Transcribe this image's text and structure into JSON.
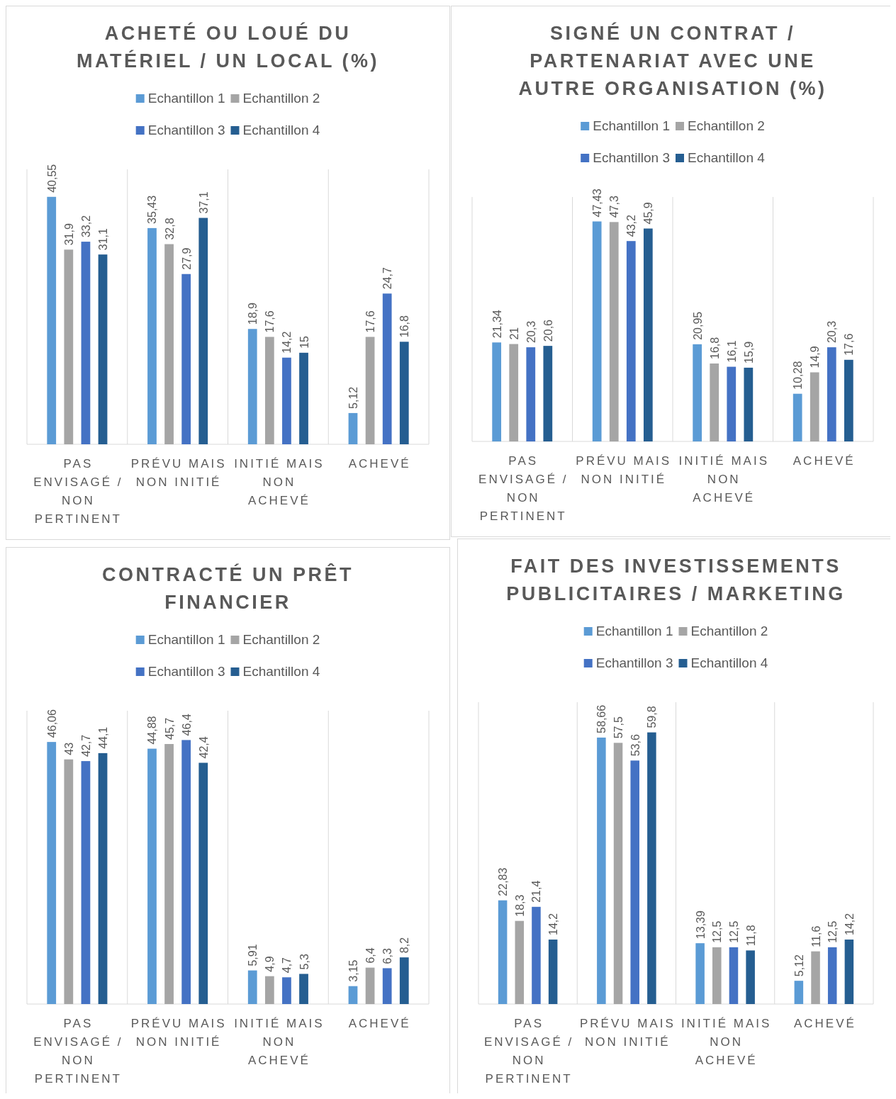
{
  "chart_data": [
    {
      "type": "bar",
      "title": "ACHETÉ OU LOUÉ DU MATÉRIEL / UN LOCAL (%)",
      "categories": [
        "PAS ENVISAGÉ / NON PERTINENT",
        "PRÉVU MAIS NON INITIÉ",
        "INITIÉ MAIS NON ACHEVÉ",
        "ACHEVÉ"
      ],
      "legend": "top",
      "grid": "x",
      "series": [
        {
          "name": "Echantillon 1",
          "color": "#5b9bd5",
          "values": [
            40.55,
            35.43,
            18.9,
            5.12
          ],
          "value_labels": [
            "40,55",
            "35,43",
            "18,9",
            "5,12"
          ]
        },
        {
          "name": "Echantillon 2",
          "color": "#a5a5a5",
          "values": [
            31.9,
            32.8,
            17.6,
            17.6
          ],
          "value_labels": [
            "31,9",
            "32,8",
            "17,6",
            "17,6"
          ]
        },
        {
          "name": "Echantillon 3",
          "color": "#4472c4",
          "values": [
            33.2,
            27.9,
            14.2,
            24.7
          ],
          "value_labels": [
            "33,2",
            "27,9",
            "14,2",
            "24,7"
          ]
        },
        {
          "name": "Echantillon 4",
          "color": "#255e91",
          "values": [
            31.1,
            37.1,
            15,
            16.8
          ],
          "value_labels": [
            "31,1",
            "37,1",
            "15",
            "16,8"
          ]
        }
      ]
    },
    {
      "type": "bar",
      "title": "SIGNÉ UN CONTRAT / PARTENARIAT AVEC UNE AUTRE ORGANISATION (%)",
      "categories": [
        "PAS ENVISAGÉ / NON PERTINENT",
        "PRÉVU MAIS NON INITIÉ",
        "INITIÉ MAIS NON ACHEVÉ",
        "ACHEVÉ"
      ],
      "legend": "top",
      "grid": "x",
      "series": [
        {
          "name": "Echantillon 1",
          "color": "#5b9bd5",
          "values": [
            21.34,
            47.43,
            20.95,
            10.28
          ],
          "value_labels": [
            "21,34",
            "47,43",
            "20,95",
            "10,28"
          ]
        },
        {
          "name": "Echantillon 2",
          "color": "#a5a5a5",
          "values": [
            21,
            47.3,
            16.8,
            14.9
          ],
          "value_labels": [
            "21",
            "47,3",
            "16,8",
            "14,9"
          ]
        },
        {
          "name": "Echantillon 3",
          "color": "#4472c4",
          "values": [
            20.3,
            43.2,
            16.1,
            20.3
          ],
          "value_labels": [
            "20,3",
            "43,2",
            "16,1",
            "20,3"
          ]
        },
        {
          "name": "Echantillon 4",
          "color": "#255e91",
          "values": [
            20.6,
            45.9,
            15.9,
            17.6
          ],
          "value_labels": [
            "20,6",
            "45,9",
            "15,9",
            "17,6"
          ]
        }
      ]
    },
    {
      "type": "bar",
      "title": "CONTRACTÉ UN PRÊT FINANCIER",
      "categories": [
        "PAS ENVISAGÉ / NON PERTINENT",
        "PRÉVU MAIS NON INITIÉ",
        "INITIÉ MAIS NON ACHEVÉ",
        "ACHEVÉ"
      ],
      "legend": "top",
      "grid": "x",
      "series": [
        {
          "name": "Echantillon 1",
          "color": "#5b9bd5",
          "values": [
            46.06,
            44.88,
            5.91,
            3.15
          ],
          "value_labels": [
            "46,06",
            "44,88",
            "5,91",
            "3,15"
          ]
        },
        {
          "name": "Echantillon 2",
          "color": "#a5a5a5",
          "values": [
            43,
            45.7,
            4.9,
            6.4
          ],
          "value_labels": [
            "43",
            "45,7",
            "4,9",
            "6,4"
          ]
        },
        {
          "name": "Echantillon 3",
          "color": "#4472c4",
          "values": [
            42.7,
            46.4,
            4.7,
            6.3
          ],
          "value_labels": [
            "42,7",
            "46,4",
            "4,7",
            "6,3"
          ]
        },
        {
          "name": "Echantillon 4",
          "color": "#255e91",
          "values": [
            44.1,
            42.4,
            5.3,
            8.2
          ],
          "value_labels": [
            "44,1",
            "42,4",
            "5,3",
            "8,2"
          ]
        }
      ]
    },
    {
      "type": "bar",
      "title": "FAIT DES INVESTISSEMENTS PUBLICITAIRES / MARKETING",
      "categories": [
        "PAS ENVISAGÉ / NON PERTINENT",
        "PRÉVU MAIS NON INITIÉ",
        "INITIÉ MAIS NON ACHEVÉ",
        "ACHEVÉ"
      ],
      "legend": "top",
      "grid": "x",
      "series": [
        {
          "name": "Echantillon 1",
          "color": "#5b9bd5",
          "values": [
            22.83,
            58.66,
            13.39,
            5.12
          ],
          "value_labels": [
            "22,83",
            "58,66",
            "13,39",
            "5,12"
          ]
        },
        {
          "name": "Echantillon 2",
          "color": "#a5a5a5",
          "values": [
            18.3,
            57.5,
            12.5,
            11.6
          ],
          "value_labels": [
            "18,3",
            "57,5",
            "12,5",
            "11,6"
          ]
        },
        {
          "name": "Echantillon 3",
          "color": "#4472c4",
          "values": [
            21.4,
            53.6,
            12.5,
            12.5
          ],
          "value_labels": [
            "21,4",
            "53,6",
            "12,5",
            "12,5"
          ]
        },
        {
          "name": "Echantillon 4",
          "color": "#255e91",
          "values": [
            14.2,
            59.8,
            11.8,
            14.2
          ],
          "value_labels": [
            "14,2",
            "59,8",
            "11,8",
            "14,2"
          ]
        }
      ]
    }
  ]
}
